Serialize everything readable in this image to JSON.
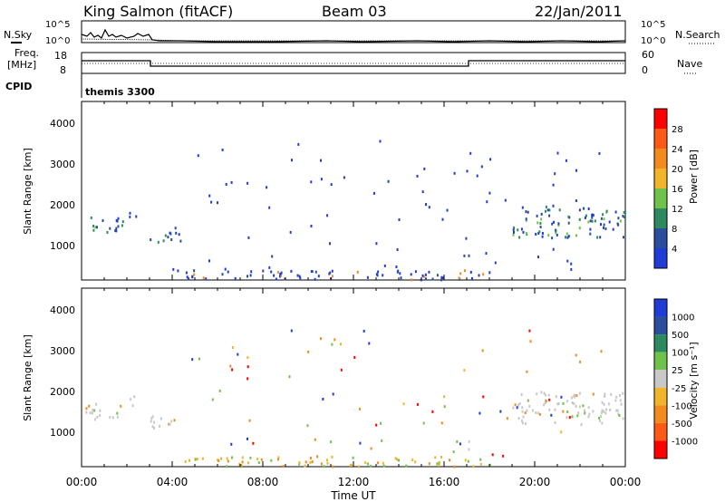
{
  "header": {
    "station": "King Salmon (fitACF)",
    "beam": "Beam 03",
    "date": "22/Jan/2011"
  },
  "top_panels": {
    "nsky_label": "N.Sky",
    "nsearch_label": "N.Search",
    "nsky_ticks": [
      "10^5",
      "10^0"
    ],
    "nsearch_ticks": [
      "10^5",
      "10^0"
    ],
    "freq_label": "Freq.",
    "freq_unit": "[MHz]",
    "freq_ticks": [
      "18",
      "8"
    ],
    "nave_label": "Nave",
    "nave_ticks": [
      "60",
      "0"
    ],
    "cpid_label": "CPID",
    "cpid_value": "themis 3300"
  },
  "colors": {
    "power": [
      "#1f3dd6",
      "#2a4d9c",
      "#2d8a5e",
      "#6fc24a",
      "#f2b42b",
      "#f28a1e",
      "#ff5a14",
      "#ff0000"
    ],
    "velocity": [
      "#1f3dd6",
      "#2a4d9c",
      "#2d8a5e",
      "#6fc24a",
      "#c8c8c8",
      "#f2b42b",
      "#f28a1e",
      "#ff5a14",
      "#ff0000"
    ]
  },
  "chart_data": [
    {
      "type": "heatmap",
      "name": "power",
      "xlabel": "",
      "ylabel": "Slant Range [km]",
      "ylim": [
        150,
        4500
      ],
      "y_ticks": [
        "1000",
        "2000",
        "3000",
        "4000"
      ],
      "colorbar_label": "Power [dB]",
      "colorbar_ticks": [
        "4",
        "8",
        "12",
        "16",
        "20",
        "24",
        "28"
      ],
      "scatter_regions": [
        {
          "t": [
            0.1,
            1.8
          ],
          "r": [
            1300,
            1750
          ],
          "dominant": "medium"
        },
        {
          "t": [
            1.9,
            2.4
          ],
          "r": [
            1600,
            1900
          ],
          "dominant": "medium"
        },
        {
          "t": [
            3.0,
            4.4
          ],
          "r": [
            1050,
            1450
          ],
          "dominant": "medium"
        },
        {
          "t": [
            16.8,
            17.1
          ],
          "r": [
            600,
            900
          ],
          "dominant": "low"
        },
        {
          "t": [
            19.0,
            24.0
          ],
          "r": [
            1200,
            2000
          ],
          "dominant": "medium"
        },
        {
          "t": [
            4.5,
            18.0
          ],
          "r": [
            180,
            420
          ],
          "dominant": "low"
        }
      ]
    },
    {
      "type": "heatmap",
      "name": "velocity",
      "xlabel": "Time UT",
      "ylabel": "Slant Range [km]",
      "ylim": [
        150,
        4500
      ],
      "y_ticks": [
        "1000",
        "2000",
        "3000",
        "4000"
      ],
      "x_ticks": [
        "00:00",
        "04:00",
        "08:00",
        "12:00",
        "16:00",
        "20:00",
        "00:00"
      ],
      "colorbar_label": "Velocity [m s⁻¹]",
      "colorbar_ticks": [
        "1000",
        "500",
        "100",
        "25",
        "-25",
        "-100",
        "-500",
        "-1000"
      ],
      "scatter_regions": [
        {
          "t": [
            0.1,
            1.8
          ],
          "r": [
            1300,
            1750
          ],
          "dominant": "ground"
        },
        {
          "t": [
            1.9,
            2.4
          ],
          "r": [
            1600,
            1900
          ],
          "dominant": "ground"
        },
        {
          "t": [
            3.0,
            4.4
          ],
          "r": [
            1050,
            1450
          ],
          "dominant": "ground"
        },
        {
          "t": [
            16.8,
            17.1
          ],
          "r": [
            600,
            900
          ],
          "dominant": "ground"
        },
        {
          "t": [
            19.0,
            24.0
          ],
          "r": [
            1200,
            2000
          ],
          "dominant": "ground"
        },
        {
          "t": [
            4.5,
            18.0
          ],
          "r": [
            180,
            420
          ],
          "dominant": "negative"
        }
      ]
    }
  ]
}
